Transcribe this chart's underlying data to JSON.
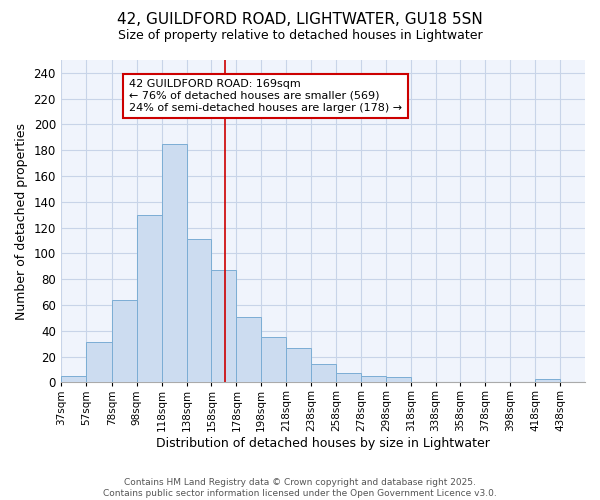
{
  "title1": "42, GUILDFORD ROAD, LIGHTWATER, GU18 5SN",
  "title2": "Size of property relative to detached houses in Lightwater",
  "xlabel": "Distribution of detached houses by size in Lightwater",
  "ylabel": "Number of detached properties",
  "bar_color": "#ccdcf0",
  "bar_edge_color": "#7badd4",
  "background_color": "#ffffff",
  "plot_bg_color": "#f0f4fc",
  "grid_color": "#c8d4e8",
  "annotation_text": "42 GUILDFORD ROAD: 169sqm\n← 76% of detached houses are smaller (569)\n24% of semi-detached houses are larger (178) →",
  "redline_x": 169,
  "categories": [
    "37sqm",
    "57sqm",
    "78sqm",
    "98sqm",
    "118sqm",
    "138sqm",
    "158sqm",
    "178sqm",
    "198sqm",
    "218sqm",
    "238sqm",
    "258sqm",
    "278sqm",
    "298sqm",
    "318sqm",
    "338sqm",
    "358sqm",
    "378sqm",
    "398sqm",
    "418sqm",
    "438sqm"
  ],
  "bin_edges": [
    37,
    57,
    78,
    98,
    118,
    138,
    158,
    178,
    198,
    218,
    238,
    258,
    278,
    298,
    318,
    338,
    358,
    378,
    398,
    418,
    438,
    458
  ],
  "values": [
    5,
    31,
    64,
    130,
    185,
    111,
    87,
    51,
    35,
    27,
    14,
    7,
    5,
    4,
    0,
    0,
    0,
    0,
    0,
    3,
    0
  ],
  "ylim": [
    0,
    250
  ],
  "yticks": [
    0,
    20,
    40,
    60,
    80,
    100,
    120,
    140,
    160,
    180,
    200,
    220,
    240
  ],
  "footer_text": "Contains HM Land Registry data © Crown copyright and database right 2025.\nContains public sector information licensed under the Open Government Licence v3.0.",
  "annotation_box_color": "#ffffff",
  "annotation_box_edge": "#cc0000",
  "redline_color": "#cc0000",
  "footer_color": "#555555"
}
